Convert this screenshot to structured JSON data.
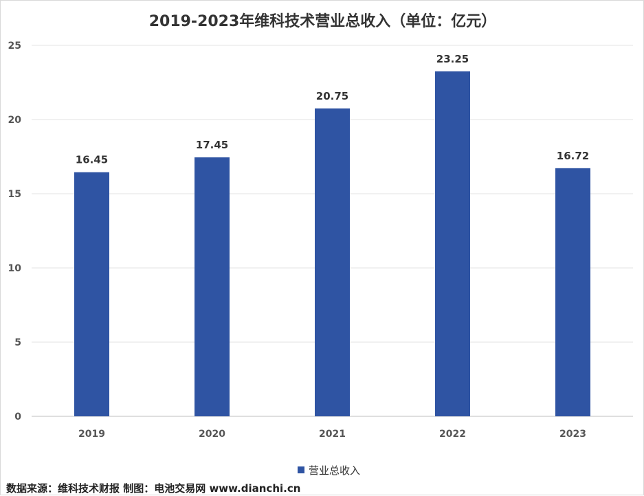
{
  "chart_data": {
    "type": "bar",
    "title": "2019-2023年维科技术营业总收入（单位：亿元）",
    "categories": [
      "2019",
      "2020",
      "2021",
      "2022",
      "2023"
    ],
    "series": [
      {
        "name": "营业总收入",
        "values": [
          16.45,
          17.45,
          20.75,
          23.25,
          16.72
        ],
        "labels": [
          "16.45",
          "17.45",
          "20.75",
          "23.25",
          "16.72"
        ]
      }
    ],
    "xlabel": "",
    "ylabel": "",
    "ylim": [
      0,
      25
    ],
    "yticks": [
      "0",
      "5",
      "10",
      "15",
      "20",
      "25"
    ],
    "grid": true,
    "legend_position": "bottom",
    "bar_color": "#2F54A3"
  },
  "footer": {
    "source": "数据来源：维科技术财报 制图：电池交易网 www.dianchi.cn"
  }
}
